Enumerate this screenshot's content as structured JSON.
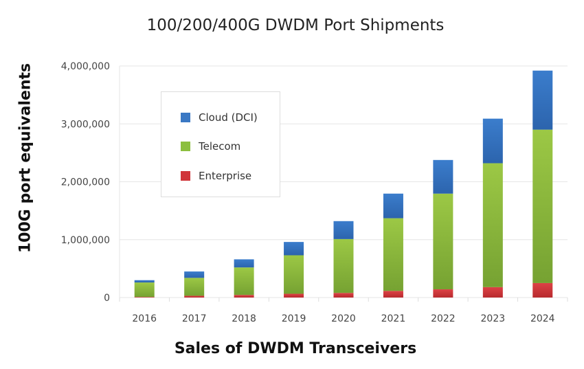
{
  "chart_data": {
    "type": "bar",
    "stacked": true,
    "title": "100/200/400G DWDM Port Shipments",
    "xlabel": "Sales of DWDM Transceivers",
    "ylabel": "100G port equivalents",
    "categories": [
      "2016",
      "2017",
      "2018",
      "2019",
      "2020",
      "2021",
      "2022",
      "2023",
      "2024"
    ],
    "ylim": [
      0,
      4000000
    ],
    "yticks": [
      "0",
      "1,000,000",
      "2,000,000",
      "3,000,000",
      "4,000,000"
    ],
    "ytick_values": [
      0,
      1000000,
      2000000,
      3000000,
      4000000
    ],
    "grid": true,
    "legend_position": "top-left",
    "series": [
      {
        "name": "Enterprise",
        "color": "#d0353a",
        "values": [
          10000,
          30000,
          45000,
          65000,
          80000,
          115000,
          142000,
          180000,
          250000
        ]
      },
      {
        "name": "Telecom",
        "color": "#8cbf3f",
        "values": [
          250000,
          310000,
          475000,
          665000,
          930000,
          1255000,
          1653000,
          2140000,
          2650000
        ]
      },
      {
        "name": "Cloud (DCI)",
        "color": "#3a78c4",
        "values": [
          40000,
          110000,
          140000,
          230000,
          310000,
          425000,
          581000,
          770000,
          1020000
        ]
      }
    ]
  }
}
